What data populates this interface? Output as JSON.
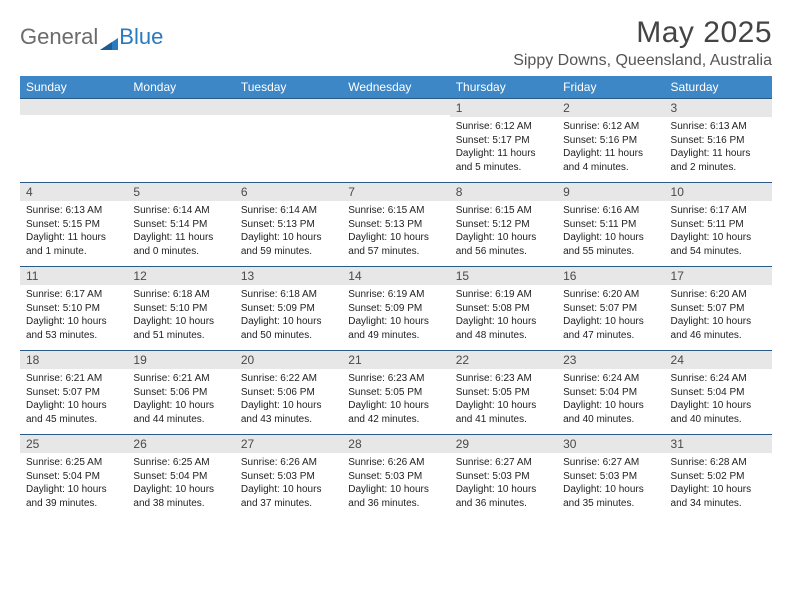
{
  "logo": {
    "text_general": "General",
    "text_blue": "Blue"
  },
  "title": "May 2025",
  "location": "Sippy Downs, Queensland, Australia",
  "colors": {
    "header_bg": "#3d87c7",
    "header_text": "#ffffff",
    "daynum_bg": "#e7e7e7",
    "row_border": "#2a5b86",
    "logo_blue": "#2a7ac0"
  },
  "dow": [
    "Sunday",
    "Monday",
    "Tuesday",
    "Wednesday",
    "Thursday",
    "Friday",
    "Saturday"
  ],
  "weeks": [
    [
      {
        "n": "",
        "sr": "",
        "ss": "",
        "dl": ""
      },
      {
        "n": "",
        "sr": "",
        "ss": "",
        "dl": ""
      },
      {
        "n": "",
        "sr": "",
        "ss": "",
        "dl": ""
      },
      {
        "n": "",
        "sr": "",
        "ss": "",
        "dl": ""
      },
      {
        "n": "1",
        "sr": "Sunrise: 6:12 AM",
        "ss": "Sunset: 5:17 PM",
        "dl": "Daylight: 11 hours and 5 minutes."
      },
      {
        "n": "2",
        "sr": "Sunrise: 6:12 AM",
        "ss": "Sunset: 5:16 PM",
        "dl": "Daylight: 11 hours and 4 minutes."
      },
      {
        "n": "3",
        "sr": "Sunrise: 6:13 AM",
        "ss": "Sunset: 5:16 PM",
        "dl": "Daylight: 11 hours and 2 minutes."
      }
    ],
    [
      {
        "n": "4",
        "sr": "Sunrise: 6:13 AM",
        "ss": "Sunset: 5:15 PM",
        "dl": "Daylight: 11 hours and 1 minute."
      },
      {
        "n": "5",
        "sr": "Sunrise: 6:14 AM",
        "ss": "Sunset: 5:14 PM",
        "dl": "Daylight: 11 hours and 0 minutes."
      },
      {
        "n": "6",
        "sr": "Sunrise: 6:14 AM",
        "ss": "Sunset: 5:13 PM",
        "dl": "Daylight: 10 hours and 59 minutes."
      },
      {
        "n": "7",
        "sr": "Sunrise: 6:15 AM",
        "ss": "Sunset: 5:13 PM",
        "dl": "Daylight: 10 hours and 57 minutes."
      },
      {
        "n": "8",
        "sr": "Sunrise: 6:15 AM",
        "ss": "Sunset: 5:12 PM",
        "dl": "Daylight: 10 hours and 56 minutes."
      },
      {
        "n": "9",
        "sr": "Sunrise: 6:16 AM",
        "ss": "Sunset: 5:11 PM",
        "dl": "Daylight: 10 hours and 55 minutes."
      },
      {
        "n": "10",
        "sr": "Sunrise: 6:17 AM",
        "ss": "Sunset: 5:11 PM",
        "dl": "Daylight: 10 hours and 54 minutes."
      }
    ],
    [
      {
        "n": "11",
        "sr": "Sunrise: 6:17 AM",
        "ss": "Sunset: 5:10 PM",
        "dl": "Daylight: 10 hours and 53 minutes."
      },
      {
        "n": "12",
        "sr": "Sunrise: 6:18 AM",
        "ss": "Sunset: 5:10 PM",
        "dl": "Daylight: 10 hours and 51 minutes."
      },
      {
        "n": "13",
        "sr": "Sunrise: 6:18 AM",
        "ss": "Sunset: 5:09 PM",
        "dl": "Daylight: 10 hours and 50 minutes."
      },
      {
        "n": "14",
        "sr": "Sunrise: 6:19 AM",
        "ss": "Sunset: 5:09 PM",
        "dl": "Daylight: 10 hours and 49 minutes."
      },
      {
        "n": "15",
        "sr": "Sunrise: 6:19 AM",
        "ss": "Sunset: 5:08 PM",
        "dl": "Daylight: 10 hours and 48 minutes."
      },
      {
        "n": "16",
        "sr": "Sunrise: 6:20 AM",
        "ss": "Sunset: 5:07 PM",
        "dl": "Daylight: 10 hours and 47 minutes."
      },
      {
        "n": "17",
        "sr": "Sunrise: 6:20 AM",
        "ss": "Sunset: 5:07 PM",
        "dl": "Daylight: 10 hours and 46 minutes."
      }
    ],
    [
      {
        "n": "18",
        "sr": "Sunrise: 6:21 AM",
        "ss": "Sunset: 5:07 PM",
        "dl": "Daylight: 10 hours and 45 minutes."
      },
      {
        "n": "19",
        "sr": "Sunrise: 6:21 AM",
        "ss": "Sunset: 5:06 PM",
        "dl": "Daylight: 10 hours and 44 minutes."
      },
      {
        "n": "20",
        "sr": "Sunrise: 6:22 AM",
        "ss": "Sunset: 5:06 PM",
        "dl": "Daylight: 10 hours and 43 minutes."
      },
      {
        "n": "21",
        "sr": "Sunrise: 6:23 AM",
        "ss": "Sunset: 5:05 PM",
        "dl": "Daylight: 10 hours and 42 minutes."
      },
      {
        "n": "22",
        "sr": "Sunrise: 6:23 AM",
        "ss": "Sunset: 5:05 PM",
        "dl": "Daylight: 10 hours and 41 minutes."
      },
      {
        "n": "23",
        "sr": "Sunrise: 6:24 AM",
        "ss": "Sunset: 5:04 PM",
        "dl": "Daylight: 10 hours and 40 minutes."
      },
      {
        "n": "24",
        "sr": "Sunrise: 6:24 AM",
        "ss": "Sunset: 5:04 PM",
        "dl": "Daylight: 10 hours and 40 minutes."
      }
    ],
    [
      {
        "n": "25",
        "sr": "Sunrise: 6:25 AM",
        "ss": "Sunset: 5:04 PM",
        "dl": "Daylight: 10 hours and 39 minutes."
      },
      {
        "n": "26",
        "sr": "Sunrise: 6:25 AM",
        "ss": "Sunset: 5:04 PM",
        "dl": "Daylight: 10 hours and 38 minutes."
      },
      {
        "n": "27",
        "sr": "Sunrise: 6:26 AM",
        "ss": "Sunset: 5:03 PM",
        "dl": "Daylight: 10 hours and 37 minutes."
      },
      {
        "n": "28",
        "sr": "Sunrise: 6:26 AM",
        "ss": "Sunset: 5:03 PM",
        "dl": "Daylight: 10 hours and 36 minutes."
      },
      {
        "n": "29",
        "sr": "Sunrise: 6:27 AM",
        "ss": "Sunset: 5:03 PM",
        "dl": "Daylight: 10 hours and 36 minutes."
      },
      {
        "n": "30",
        "sr": "Sunrise: 6:27 AM",
        "ss": "Sunset: 5:03 PM",
        "dl": "Daylight: 10 hours and 35 minutes."
      },
      {
        "n": "31",
        "sr": "Sunrise: 6:28 AM",
        "ss": "Sunset: 5:02 PM",
        "dl": "Daylight: 10 hours and 34 minutes."
      }
    ]
  ]
}
